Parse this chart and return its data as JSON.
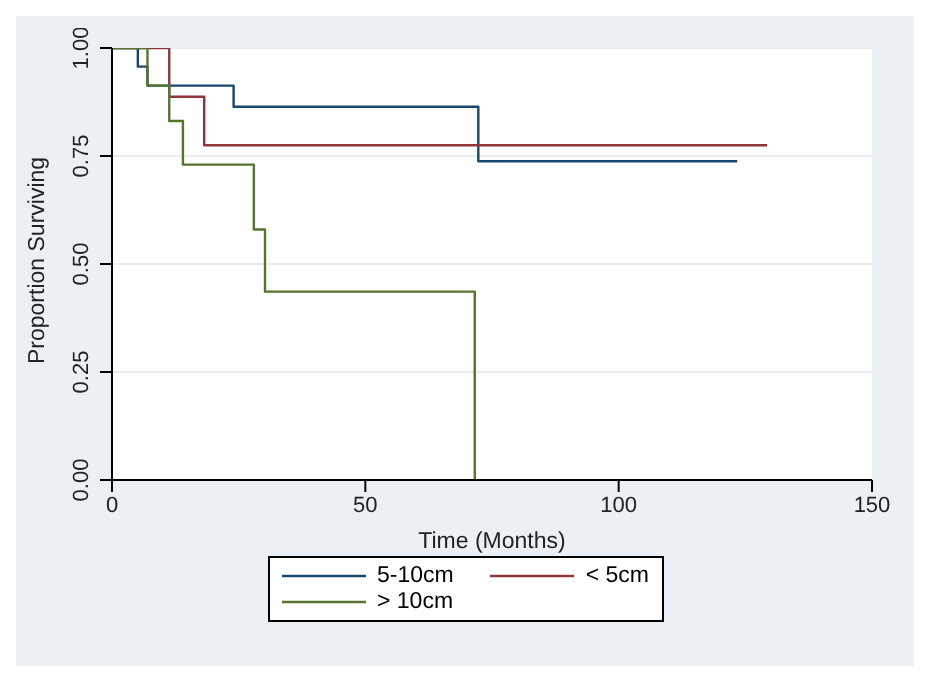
{
  "chart_data": {
    "type": "step",
    "xlabel": "Time (Months)",
    "ylabel": "Proportion Surviving",
    "xlim": [
      0,
      150
    ],
    "xticks": [
      0,
      50,
      100,
      150
    ],
    "ylim": [
      0,
      1
    ],
    "yticks": [
      {
        "value": 0,
        "label": "0.00"
      },
      {
        "value": 0.25,
        "label": "0.25"
      },
      {
        "value": 0.5,
        "label": "0.50"
      },
      {
        "value": 0.75,
        "label": "0.75"
      },
      {
        "value": 1,
        "label": "1.00"
      }
    ],
    "grid": "y",
    "legend": "bottom",
    "line_style": "solid",
    "marker": "none",
    "series": [
      {
        "name": "5-10cm",
        "color": "#1a476f",
        "x": [
          0,
          5.1,
          7,
          24,
          72.3,
          123.4
        ],
        "values": [
          1,
          0.957,
          0.913,
          0.864,
          0.738,
          0.738
        ]
      },
      {
        "name": "< 5cm",
        "color": "#90353b",
        "x": [
          0,
          11.3,
          18.2,
          129.3
        ],
        "values": [
          1,
          0.887,
          0.775,
          0.775
        ]
      },
      {
        "name": "> 10cm",
        "color": "#55752f",
        "x": [
          0,
          7,
          11.3,
          14,
          28,
          30.2,
          71.6
        ],
        "values": [
          1,
          0.913,
          0.831,
          0.73,
          0.58,
          0.436,
          0
        ]
      }
    ]
  }
}
